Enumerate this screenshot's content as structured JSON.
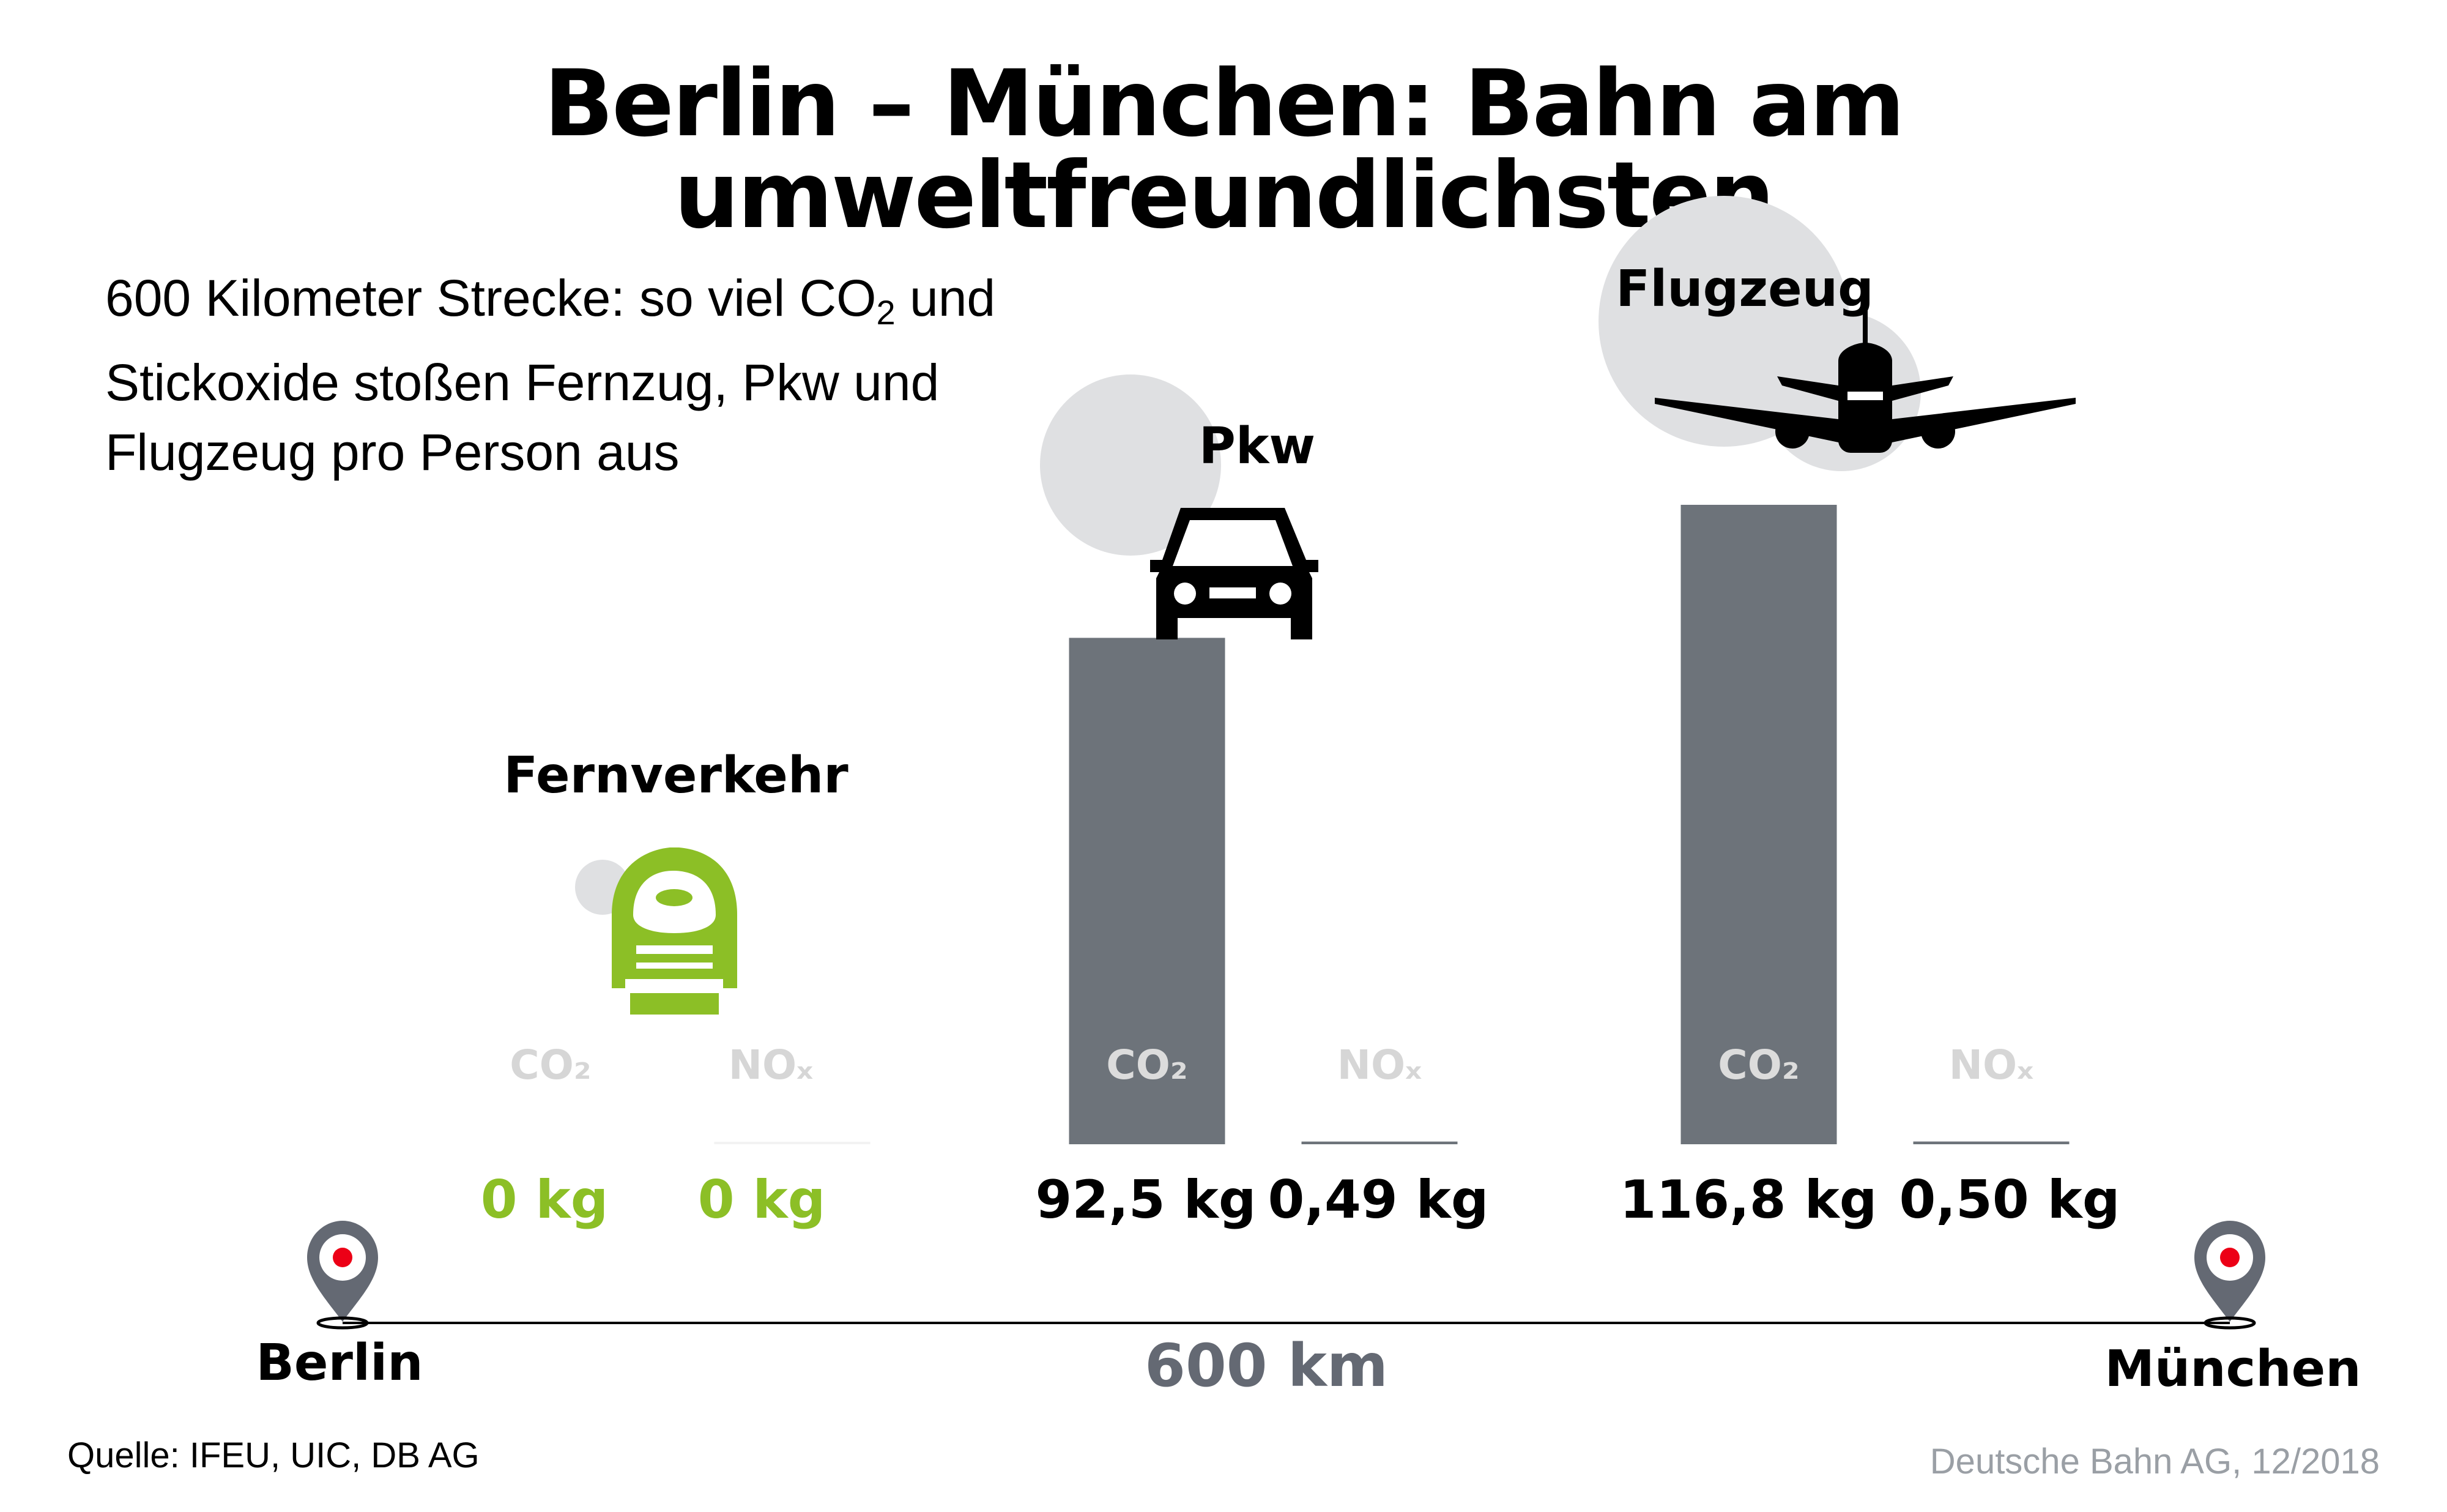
{
  "title": "Berlin – München: Bahn am umweltfreundlichsten",
  "subtitle": {
    "line1_a": "600 Kilometer Strecke: so viel CO",
    "line1_sub": "2",
    "line1_b": " und",
    "line2": "Stickoxide stoßen Fernzug, Pkw und",
    "line3": "Flugzeug pro Person aus"
  },
  "colors": {
    "bar": "#6d737a",
    "green": "#8cbf26",
    "smoke": "#dfe0e2",
    "pin_red": "#ec0016",
    "muted": "#646973"
  },
  "icons": [
    "train-icon",
    "car-icon",
    "airplane-icon",
    "map-pin-icon"
  ],
  "chart_data": {
    "type": "bar",
    "categories": [
      "Fernverkehr",
      "Pkw",
      "Flugzeug"
    ],
    "series": [
      {
        "name": "CO₂",
        "values": [
          0,
          92.5,
          116.8
        ],
        "labels": [
          "0 kg",
          "92,5 kg",
          "116,8 kg"
        ]
      },
      {
        "name": "NOₓ",
        "values": [
          0,
          0.49,
          0.5
        ],
        "labels": [
          "0 kg",
          "0,49 kg",
          "0,50 kg"
        ]
      }
    ],
    "unit": "kg",
    "ylim": [
      0,
      116.8
    ],
    "grid": false,
    "legend": "none"
  },
  "route": {
    "from": "Berlin",
    "to": "München",
    "distance": "600 km"
  },
  "footer": {
    "source": "Quelle: IFEU, UIC, DB AG",
    "credit": "Deutsche Bahn AG, 12/2018"
  }
}
